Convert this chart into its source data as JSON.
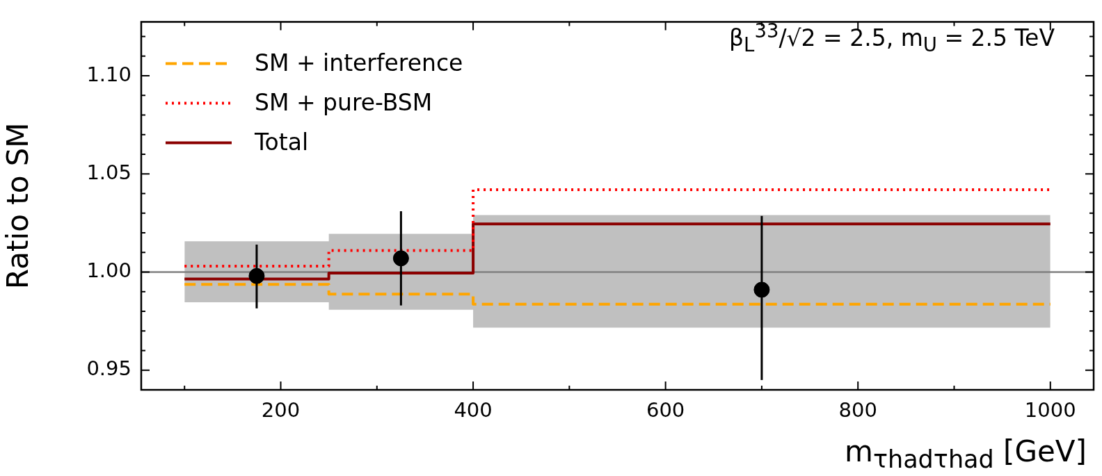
{
  "chart_data": {
    "type": "step",
    "xlabel": "m$_{τhadτhad}$ [GeV]",
    "ylabel": "Ratio to SM",
    "annotations": [
      "β$_{L}$$^{33}$/√2 = 2.5, m$_{U}$ = 2.5 TeV"
    ],
    "xlim": [
      55,
      1045
    ],
    "ylim": [
      0.94,
      1.1275
    ],
    "xticks": [
      {
        "value": 100,
        "label": null
      },
      200,
      {
        "value": 300,
        "label": null
      },
      400,
      {
        "value": 500,
        "label": null
      },
      600,
      {
        "value": 700,
        "label": null
      },
      800,
      {
        "value": 900,
        "label": null
      },
      1000
    ],
    "yticks": [
      {
        "value": 0.95,
        "label": "0.95"
      },
      {
        "value": 0.96,
        "label": null
      },
      {
        "value": 0.97,
        "label": null
      },
      {
        "value": 0.98,
        "label": null
      },
      {
        "value": 0.99,
        "label": null
      },
      {
        "value": 1.0,
        "label": "1.00"
      },
      {
        "value": 1.01,
        "label": null
      },
      {
        "value": 1.02,
        "label": null
      },
      {
        "value": 1.03,
        "label": null
      },
      {
        "value": 1.04,
        "label": null
      },
      {
        "value": 1.05,
        "label": "1.05"
      },
      {
        "value": 1.06,
        "label": null
      },
      {
        "value": 1.07,
        "label": null
      },
      {
        "value": 1.08,
        "label": null
      },
      {
        "value": 1.09,
        "label": null
      },
      {
        "value": 1.1,
        "label": "1.10"
      },
      {
        "value": 1.11,
        "label": null
      },
      {
        "value": 1.12,
        "label": null
      }
    ],
    "ref_lines": [
      {
        "axis": "y",
        "value": 1.0,
        "color": "#808080"
      }
    ],
    "legend": "top left",
    "grid": false,
    "series": [
      {
        "x": [
          100,
          250,
          400,
          1000
        ],
        "values": [
          null,
          null,
          null,
          null
        ],
        "lower": [
          0.9846,
          0.9808,
          0.9717,
          0.9717
        ],
        "upper": [
          1.0157,
          1.0195,
          1.029,
          1.029
        ],
        "color": "#c0c0c0"
      },
      {
        "name": "SM + interference",
        "x": [
          100,
          250,
          400,
          1000
        ],
        "values": [
          0.9937,
          0.9888,
          0.9836,
          0.9836
        ],
        "color": "#ffa500",
        "line_style": "dashed"
      },
      {
        "name": "SM + pure-BSM",
        "x": [
          100,
          250,
          400,
          1000
        ],
        "values": [
          1.003,
          1.011,
          1.042,
          1.042
        ],
        "color": "#ff0000",
        "line_style": "dotted"
      },
      {
        "name": "Total",
        "x": [
          100,
          250,
          400,
          1000
        ],
        "values": [
          0.9965,
          0.9995,
          1.0245,
          1.0245
        ],
        "color": "#8b0000",
        "line_style": "solid"
      },
      {
        "type": "scatter",
        "x": [
          175,
          325,
          700
        ],
        "values": [
          0.998,
          1.007,
          0.991
        ],
        "errors": [
          [
            0.9815,
            1.014
          ],
          [
            0.983,
            1.031
          ],
          [
            0.945,
            1.0286
          ]
        ],
        "color": "#000000",
        "marker": "circle"
      }
    ]
  }
}
